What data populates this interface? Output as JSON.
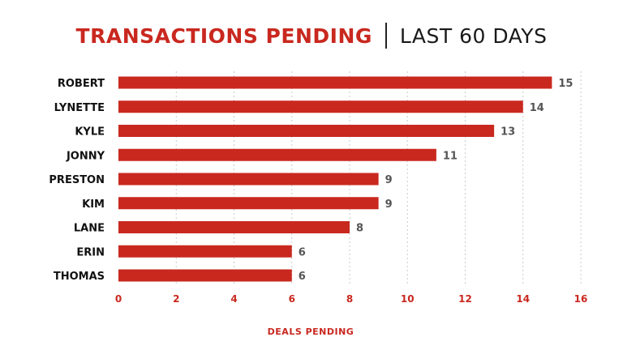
{
  "chart_data": {
    "type": "bar",
    "orientation": "horizontal",
    "title": "TRANSACTIONS PENDING",
    "subtitle": "LAST 60 DAYS",
    "xlabel": "DEALS PENDING",
    "ylabel": "",
    "categories": [
      "ROBERT",
      "LYNETTE",
      "KYLE",
      "JONNY",
      "PRESTON",
      "KIM",
      "LANE",
      "ERIN",
      "THOMAS"
    ],
    "values": [
      15,
      14,
      13,
      11,
      9,
      9,
      8,
      6,
      6
    ],
    "xlim": [
      0,
      16
    ],
    "xticks": [
      0,
      2,
      4,
      6,
      8,
      10,
      12,
      14,
      16
    ],
    "grid": "vertical dotted",
    "bar_color": "#c9281f",
    "tick_color": "#c9281f",
    "value_label_color": "#555555"
  }
}
